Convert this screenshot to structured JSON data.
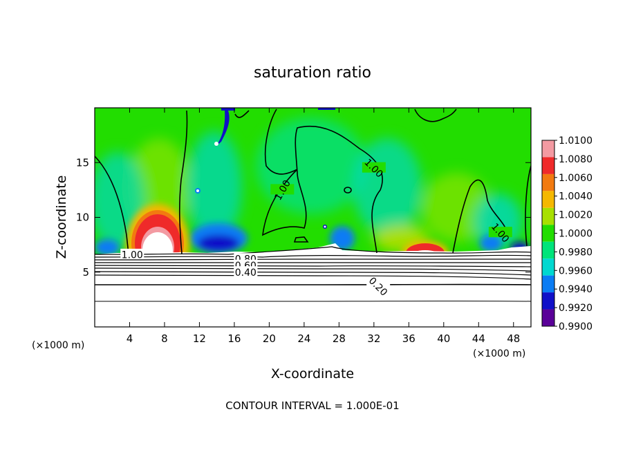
{
  "chart_data": {
    "type": "heatmap",
    "title": "saturation ratio",
    "xlabel": "X-coordinate",
    "ylabel": "Z-coordinate",
    "x_unit": "(×1000 m)",
    "x_unit_right": "(×1000 m)",
    "xlim": [
      0,
      50
    ],
    "ylim": [
      0,
      20
    ],
    "x_ticks": [
      4,
      8,
      12,
      16,
      20,
      24,
      28,
      32,
      36,
      40,
      44,
      48
    ],
    "y_ticks": [
      5,
      10,
      15
    ],
    "footer": "CONTOUR INTERVAL = 1.000E-01",
    "colorbar": {
      "min": 0.99,
      "max": 1.01,
      "labels": [
        "1.0100",
        "1.0080",
        "1.0060",
        "1.0040",
        "1.0020",
        "1.0000",
        "0.9980",
        "0.9960",
        "0.9940",
        "0.9920",
        "0.9900"
      ],
      "colors": [
        "#f39aa2",
        "#ef2a2a",
        "#f27a10",
        "#f5b800",
        "#a8e000",
        "#22dd00",
        "#00e47a",
        "#00d8d0",
        "#0a7cf4",
        "#1010c8",
        "#5a0098"
      ]
    },
    "contour_labels": [
      {
        "text": "1.00",
        "x": 4.3,
        "z": 6.6
      },
      {
        "text": "1.00",
        "x": 21.5,
        "z": 12.5
      },
      {
        "text": "1.00",
        "x": 32.0,
        "z": 14.5
      },
      {
        "text": "1.00",
        "x": 46.5,
        "z": 8.6
      },
      {
        "text": "0.80",
        "x": 17.3,
        "z": 6.2
      },
      {
        "text": "0.60",
        "x": 17.3,
        "z": 5.6
      },
      {
        "text": "0.40",
        "x": 17.3,
        "z": 5.0
      },
      {
        "text": "0.20",
        "x": 32.5,
        "z": 3.7
      }
    ]
  }
}
